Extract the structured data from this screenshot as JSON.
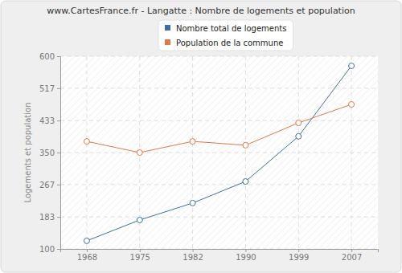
{
  "chart_data": {
    "type": "line",
    "title": "www.CartesFrance.fr - Langatte : Nombre de logements et population",
    "y_label": "Logements et population",
    "categories": [
      "1968",
      "1975",
      "1982",
      "1990",
      "1999",
      "2007"
    ],
    "series": [
      {
        "name": "Nombre total de logements",
        "color": "#3e6fa3",
        "marker": "circle",
        "values": [
          121,
          175,
          219,
          275,
          392,
          575
        ]
      },
      {
        "name": "Population de la commune",
        "color": "#e07848",
        "marker": "circle",
        "values": [
          379,
          350,
          379,
          369,
          427,
          475
        ]
      }
    ],
    "ylim": [
      100,
      600
    ],
    "yticks": [
      100,
      183,
      267,
      350,
      433,
      517,
      600
    ],
    "grid": true,
    "legend": "top"
  }
}
